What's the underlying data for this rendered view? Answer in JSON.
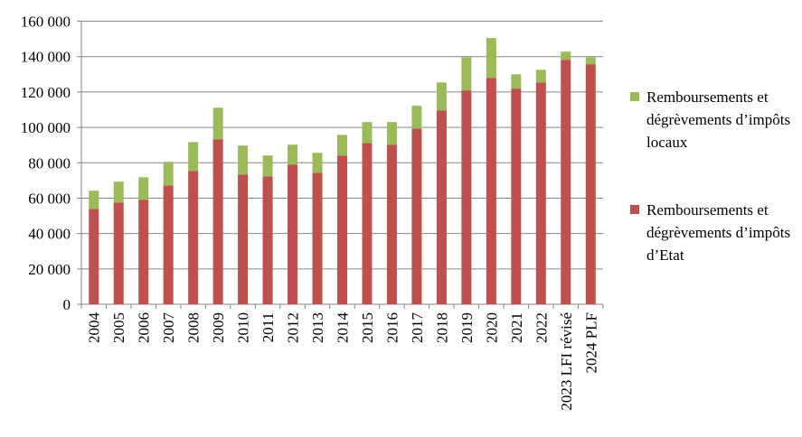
{
  "chart_data": {
    "type": "bar",
    "stacked": true,
    "title": "",
    "xlabel": "",
    "ylabel": "",
    "ylim": [
      0,
      160000
    ],
    "yticks": [
      0,
      20000,
      40000,
      60000,
      80000,
      100000,
      120000,
      140000,
      160000
    ],
    "ytick_labels": [
      "0",
      "20 000",
      "40 000",
      "60 000",
      "80 000",
      "100 000",
      "120 000",
      "140 000",
      "160 000"
    ],
    "grid": true,
    "legend_position": "right",
    "categories": [
      "2004",
      "2005",
      "2006",
      "2007",
      "2008",
      "2009",
      "2010",
      "2011",
      "2012",
      "2013",
      "2014",
      "2015",
      "2016",
      "2017",
      "2018",
      "2019",
      "2020",
      "2021",
      "2022",
      "2023 LFI révisé",
      "2024 PLF"
    ],
    "series": [
      {
        "name": "Remboursements et dégrèvements d’impôts d’Etat",
        "color": "#C0504D",
        "values": [
          54000,
          57500,
          59100,
          67200,
          75400,
          93300,
          73400,
          72300,
          79000,
          74400,
          84100,
          91200,
          90200,
          99400,
          109600,
          120900,
          128000,
          121900,
          125400,
          138200,
          135700
        ]
      },
      {
        "name": "Remboursements et dégrèvements d’impôts locaux",
        "color": "#9BBB59",
        "values": [
          10200,
          11800,
          12700,
          13300,
          16300,
          17800,
          16300,
          11800,
          11200,
          11200,
          11700,
          11800,
          12800,
          12800,
          15800,
          18700,
          22500,
          8100,
          7200,
          4600,
          3900
        ]
      }
    ],
    "legend": [
      {
        "label": "Remboursements et dégrèvements d’impôts locaux",
        "color": "#9BBB59"
      },
      {
        "label": "Remboursements et dégrèvements d’impôts d’Etat",
        "color": "#C0504D"
      }
    ]
  }
}
